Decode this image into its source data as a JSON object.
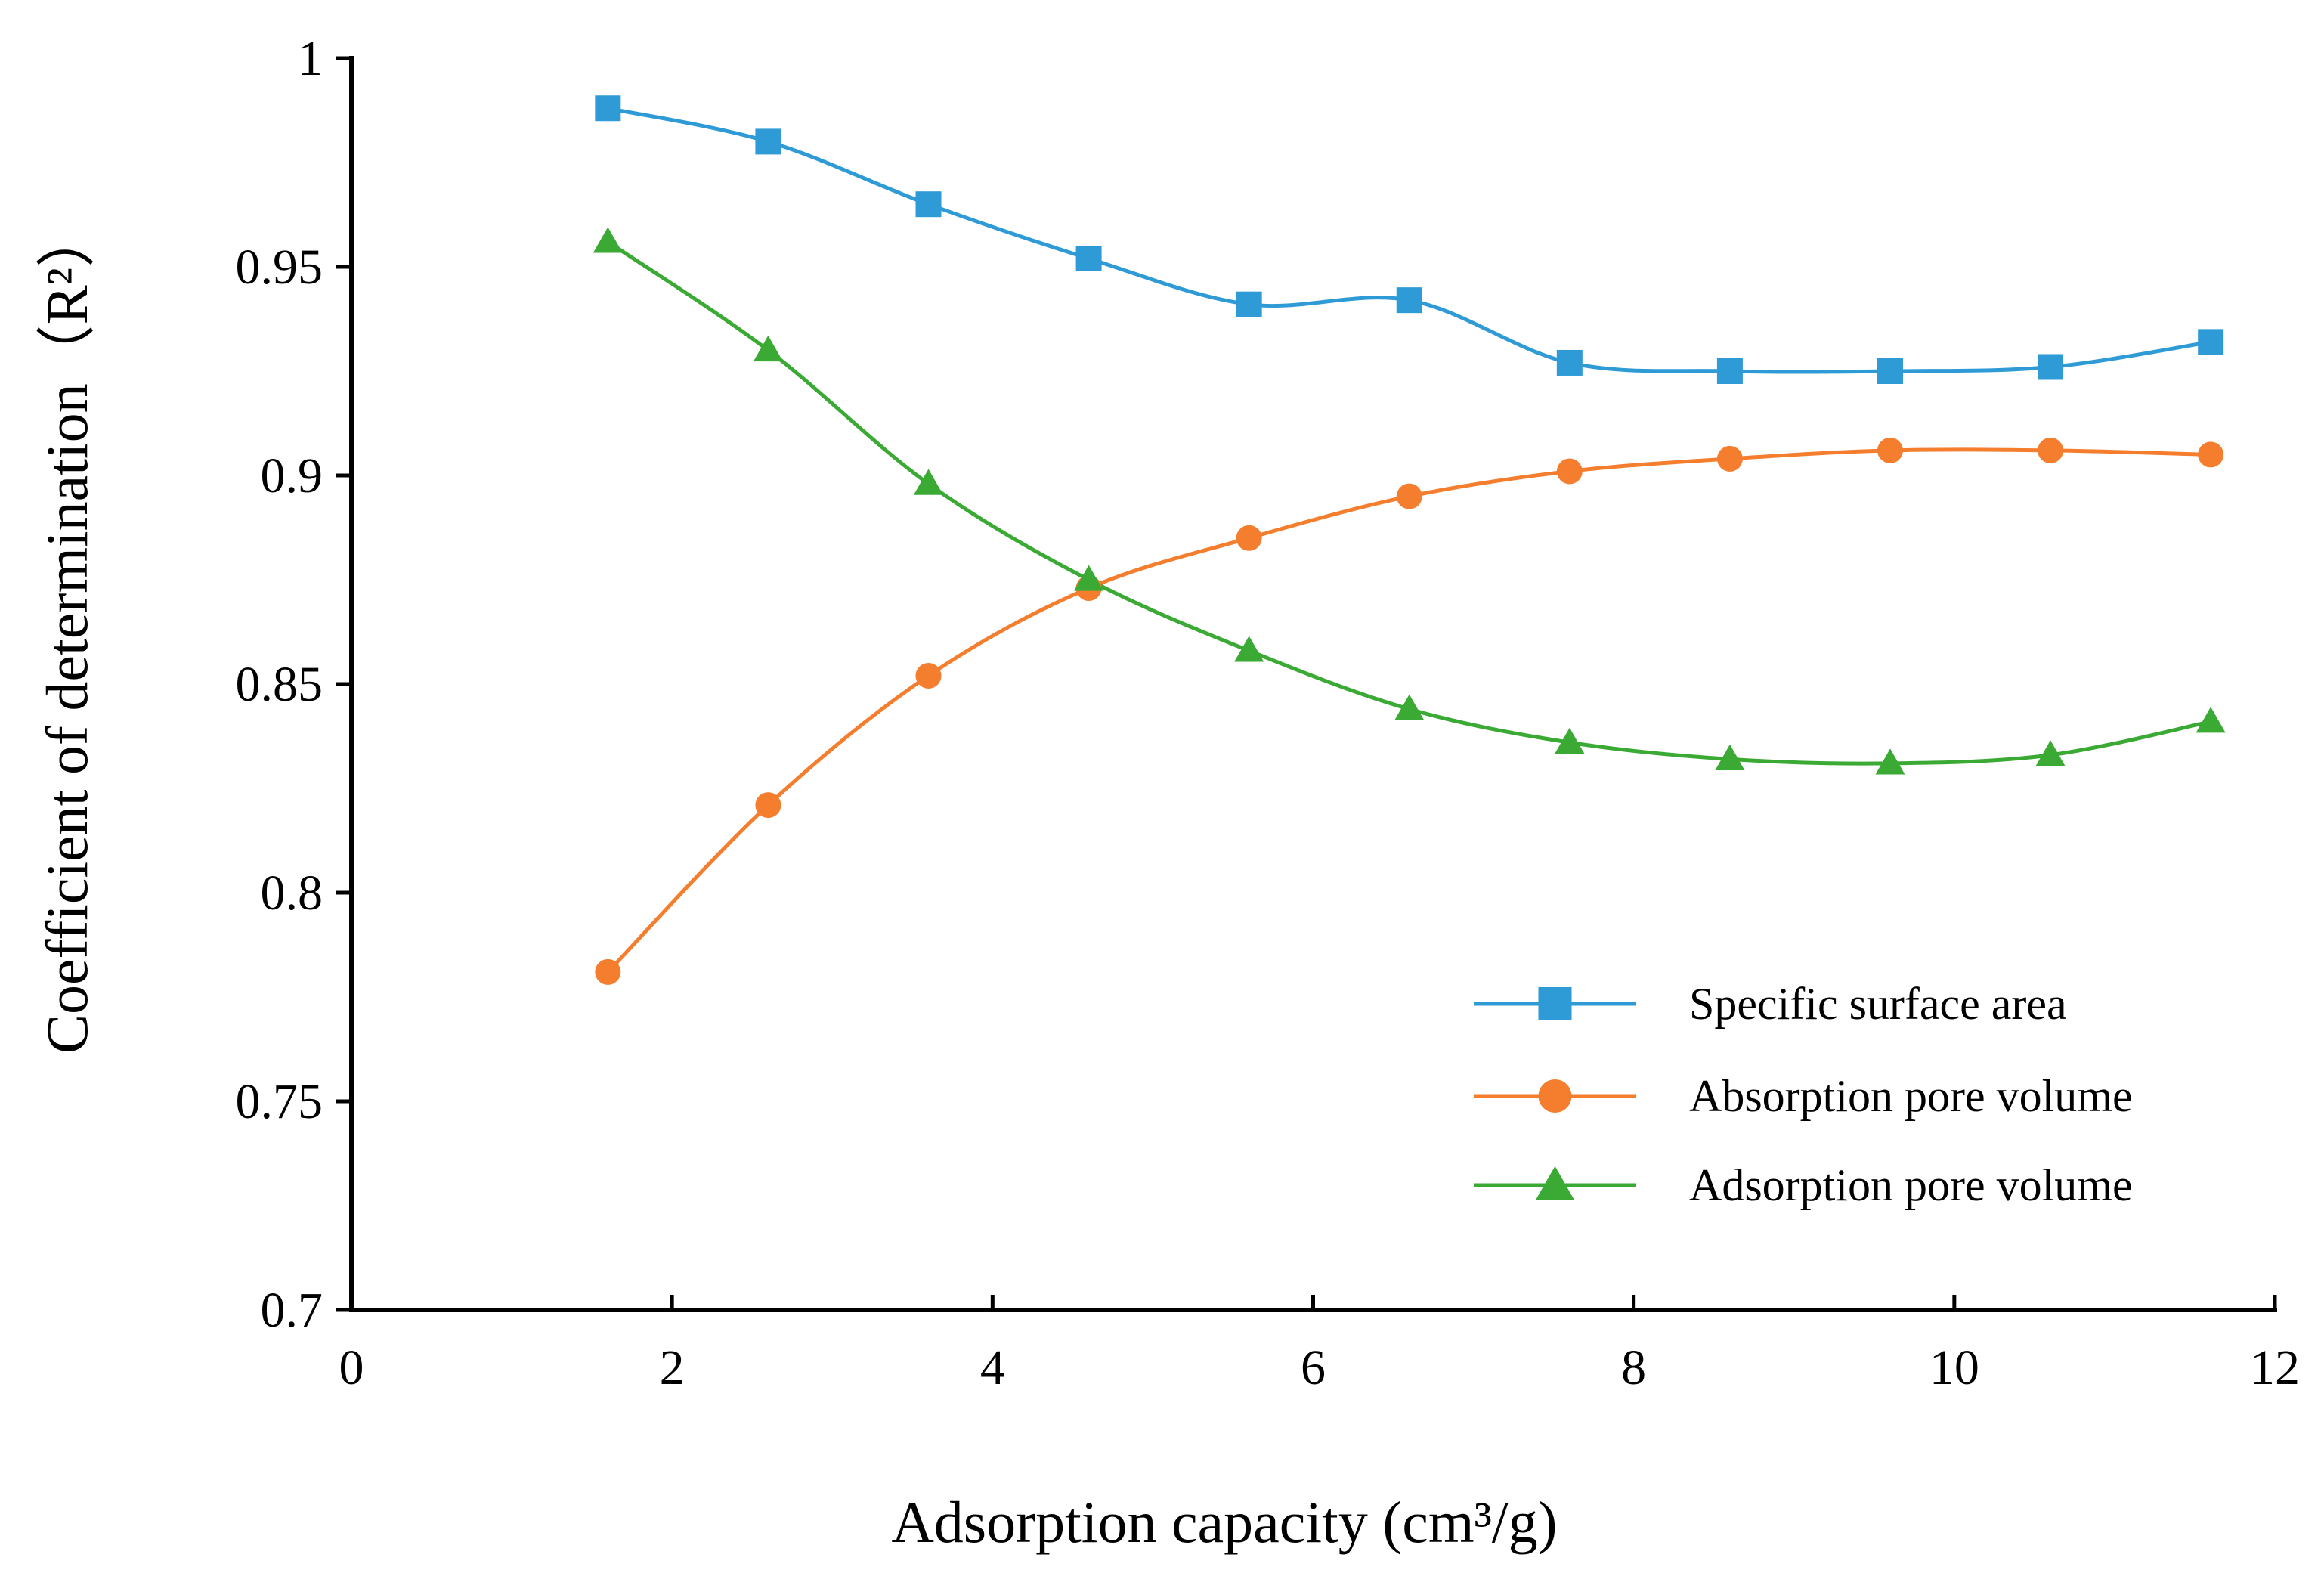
{
  "chart_data": {
    "type": "line",
    "title": "",
    "xlabel": "Adsorption capacity (cm³/g)",
    "ylabel": "Coefficient of determination（R²）",
    "xlim": [
      0,
      12
    ],
    "ylim": [
      0.7,
      1.0
    ],
    "x_ticks": [
      0,
      2,
      4,
      6,
      8,
      10,
      12
    ],
    "x_tick_labels": [
      "0",
      "2",
      "4",
      "6",
      "8",
      "10",
      "12"
    ],
    "y_ticks": [
      0.7,
      0.75,
      0.8,
      0.85,
      0.9,
      0.95,
      1.0
    ],
    "y_tick_labels": [
      "0.7",
      "0.75",
      "0.8",
      "0.85",
      "0.9",
      "0.95",
      "1"
    ],
    "grid": false,
    "legend_position": "bottom-right",
    "x": [
      1.6,
      2.6,
      3.6,
      4.6,
      5.6,
      6.6,
      7.6,
      8.6,
      9.6,
      10.6,
      11.6
    ],
    "series": [
      {
        "name": "Specific surface area",
        "color": "#2E9BD6",
        "marker": "square",
        "values": [
          0.988,
          0.98,
          0.965,
          0.952,
          0.941,
          0.942,
          0.927,
          0.925,
          0.925,
          0.926,
          0.932
        ]
      },
      {
        "name": "Absorption pore volume",
        "color": "#F47E2E",
        "marker": "circle",
        "values": [
          0.781,
          0.821,
          0.852,
          0.873,
          0.885,
          0.895,
          0.901,
          0.904,
          0.906,
          0.906,
          0.905
        ]
      },
      {
        "name": "Adsorption pore volume",
        "color": "#3AAA35",
        "marker": "triangle",
        "values": [
          0.956,
          0.93,
          0.898,
          0.875,
          0.858,
          0.844,
          0.836,
          0.832,
          0.831,
          0.833,
          0.841
        ]
      }
    ]
  }
}
